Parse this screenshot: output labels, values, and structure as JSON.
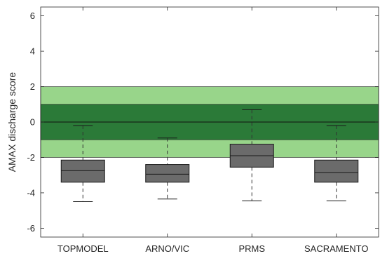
{
  "chart_data": {
    "type": "box",
    "ylabel": "AMAX discharge score",
    "xlabel": "",
    "title": "",
    "ylim": [
      -6.5,
      6.5
    ],
    "yticks": [
      -6,
      -4,
      -2,
      0,
      2,
      4,
      6
    ],
    "tick_labels": [
      "-6",
      "-4",
      "-2",
      "0",
      "2",
      "4",
      "6"
    ],
    "categories": [
      "TOPMODEL",
      "ARNO/VIC",
      "PRMS",
      "SACRAMENTO"
    ],
    "boxes": [
      {
        "label": "TOPMODEL",
        "whisker_low": -4.5,
        "q1": -3.4,
        "median": -2.75,
        "q3": -2.15,
        "whisker_high": -0.2
      },
      {
        "label": "ARNO/VIC",
        "whisker_low": -4.35,
        "q1": -3.4,
        "median": -2.95,
        "q3": -2.4,
        "whisker_high": -0.9
      },
      {
        "label": "PRMS",
        "whisker_low": -4.45,
        "q1": -2.55,
        "median": -1.9,
        "q3": -1.25,
        "whisker_high": 0.7
      },
      {
        "label": "SACRAMENTO",
        "whisker_low": -4.45,
        "q1": -3.4,
        "median": -2.85,
        "q3": -2.15,
        "whisker_high": -0.2
      }
    ],
    "bands": [
      {
        "from": -2,
        "to": 2,
        "color": "#98d58a"
      },
      {
        "from": -1,
        "to": 1,
        "color": "#2b7a38"
      }
    ],
    "reference_line": 0,
    "colors": {
      "box_fill": "#6b6b6b",
      "box_edge": "#1a1a1a",
      "whisker": "#333333",
      "axis": "#262626"
    }
  }
}
